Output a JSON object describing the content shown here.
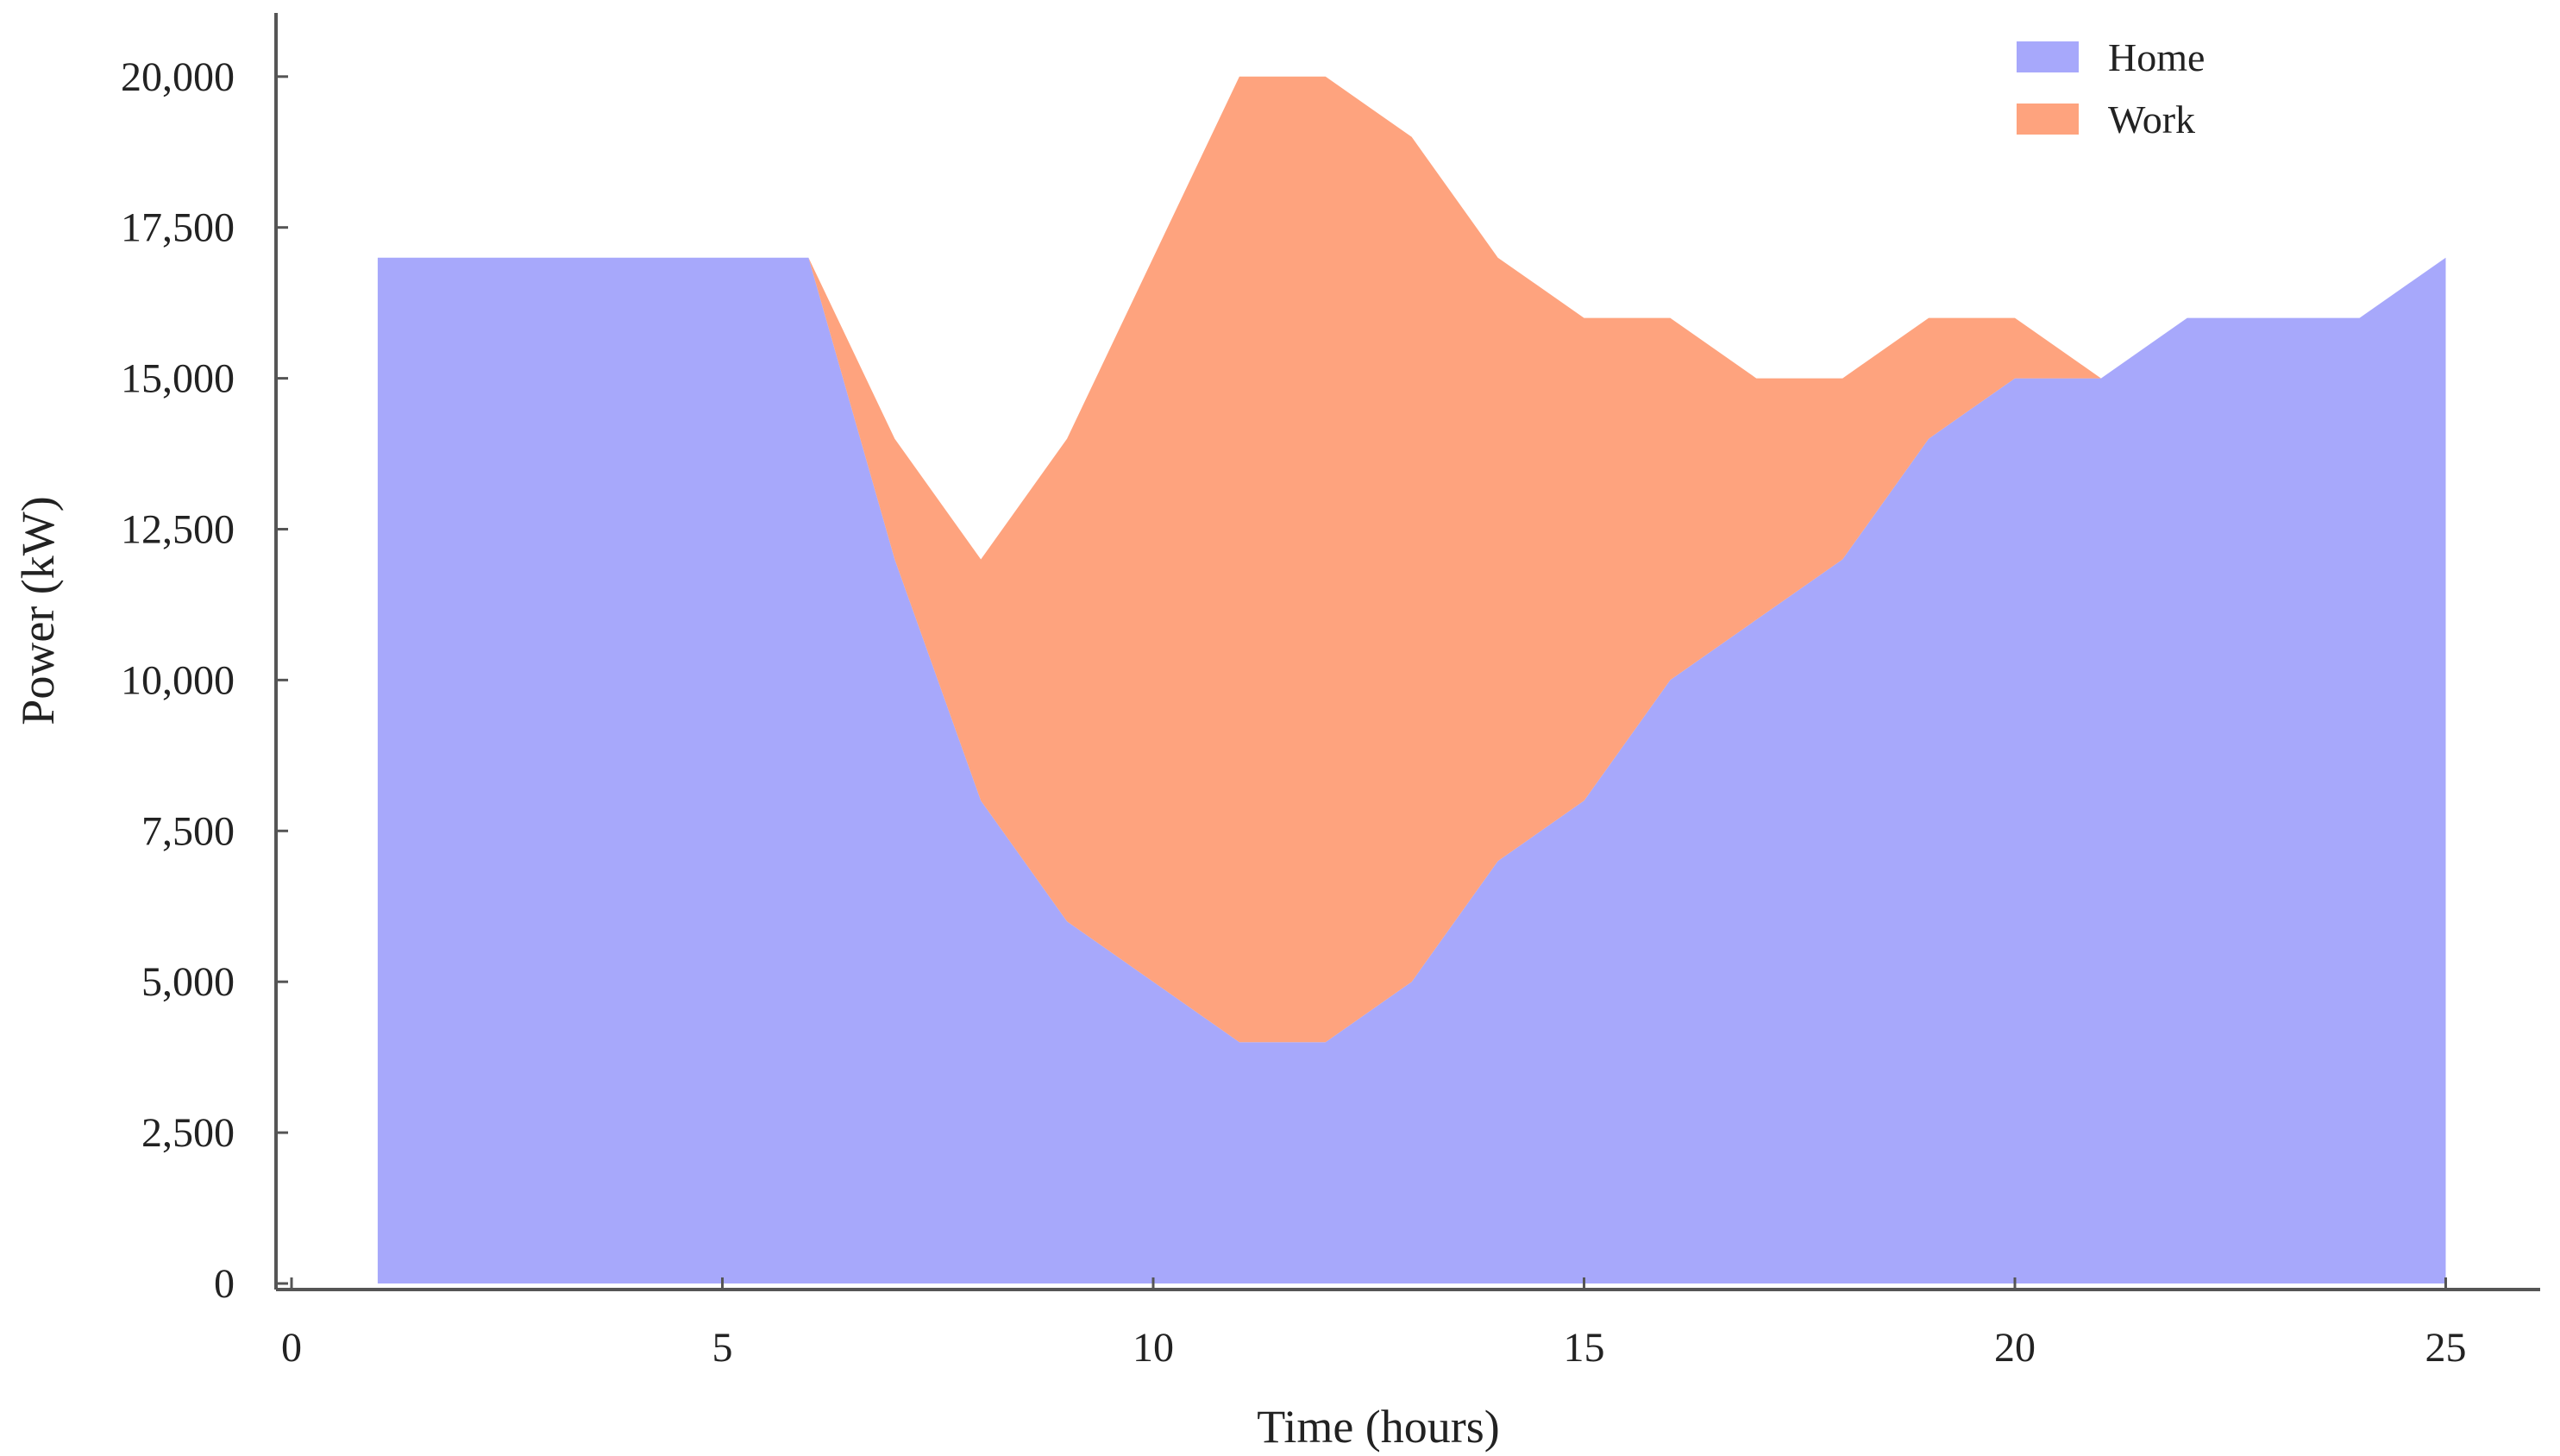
{
  "chart_data": {
    "type": "area",
    "stacked": true,
    "xlabel": "Time (hours)",
    "ylabel": "Power (kW)",
    "xlim": [
      0,
      26.2
    ],
    "ylim": [
      0,
      21000
    ],
    "xticks": [
      0,
      5,
      10,
      15,
      20,
      25
    ],
    "xtick_labels": [
      "0",
      "5",
      "10",
      "15",
      "20",
      "25"
    ],
    "yticks": [
      0,
      2500,
      5000,
      7500,
      10000,
      12500,
      15000,
      17500,
      20000
    ],
    "ytick_labels": [
      "0",
      "2,500",
      "5,000",
      "7,500",
      "10,000",
      "12,500",
      "15,000",
      "17,500",
      "20,000"
    ],
    "grid": false,
    "legend_position": "top-right",
    "x": [
      1,
      2,
      3,
      4,
      5,
      6,
      7,
      8,
      9,
      10,
      11,
      12,
      13,
      14,
      15,
      16,
      17,
      18,
      19,
      20,
      21,
      22,
      23,
      24,
      25
    ],
    "series": [
      {
        "name": "Home",
        "color": "#a7a8fb",
        "values": [
          17000,
          17000,
          17000,
          17000,
          17000,
          17000,
          12000,
          8000,
          6000,
          5000,
          4000,
          4000,
          5000,
          7000,
          8000,
          10000,
          11000,
          12000,
          14000,
          15000,
          15000,
          16000,
          16000,
          16000,
          17000
        ]
      },
      {
        "name": "Work",
        "color": "#fea37e",
        "values": [
          0,
          0,
          0,
          0,
          0,
          0,
          2000,
          4000,
          8000,
          12000,
          16000,
          16000,
          14000,
          10000,
          8000,
          6000,
          4000,
          3000,
          2000,
          1000,
          0,
          0,
          0,
          0,
          0
        ]
      }
    ]
  }
}
